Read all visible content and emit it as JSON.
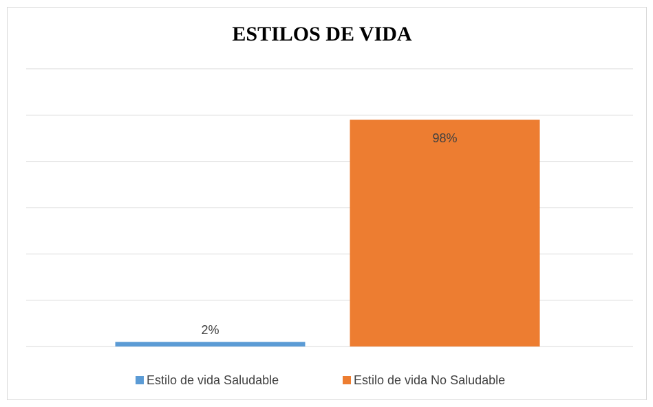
{
  "chart_data": {
    "type": "bar",
    "title": "ESTILOS DE VIDA",
    "categories": [
      null
    ],
    "series": [
      {
        "name": "Estilo de vida Saludable",
        "color": "#5b9bd5",
        "values": [
          2
        ],
        "value_labels": [
          "2%"
        ]
      },
      {
        "name": "Estilo de vida No Saludable",
        "color": "#ed7d31",
        "values": [
          98
        ],
        "value_labels": [
          "98%"
        ]
      }
    ],
    "ylim": [
      0,
      120
    ],
    "yticks": [
      0,
      20,
      40,
      60,
      80,
      100,
      120
    ],
    "grid": true,
    "legend": "bottom"
  }
}
